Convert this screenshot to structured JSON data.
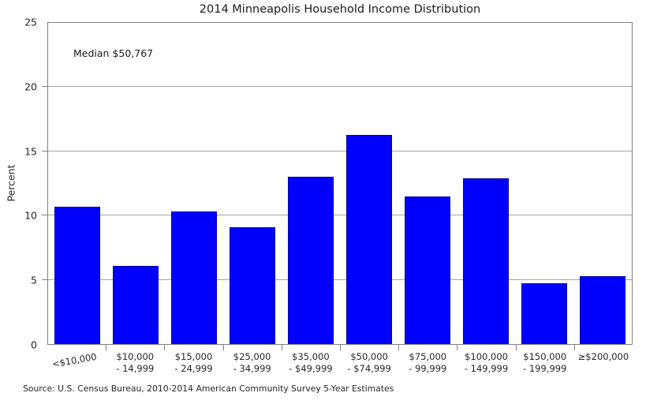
{
  "title": "2014 Minneapolis Household Income Distribution",
  "annotation": "Median $50,767",
  "ylabel": "Percent",
  "source": "Source: U.S. Census Bureau, 2010-2014 American Community Survey 5-Year Estimates",
  "colors": {
    "bar_fill": "#0000fe",
    "bar_edge": "#0000a8",
    "gridline": "#a3a3a3",
    "spine": "#808080",
    "text": "#262626"
  },
  "x_labels": [
    {
      "lines": [
        "<$10,000"
      ],
      "rotated": true
    },
    {
      "lines": [
        "$10,000",
        "- 14,999"
      ],
      "rotated": false
    },
    {
      "lines": [
        "$15,000",
        "- 24,999"
      ],
      "rotated": false
    },
    {
      "lines": [
        "$25,000",
        "- 34,999"
      ],
      "rotated": false
    },
    {
      "lines": [
        "$35,000",
        "- $49,999"
      ],
      "rotated": false
    },
    {
      "lines": [
        "$50,000",
        "- $74,999"
      ],
      "rotated": false
    },
    {
      "lines": [
        "$75,000",
        "- 99,999"
      ],
      "rotated": false
    },
    {
      "lines": [
        "$100,000",
        "- 149,999"
      ],
      "rotated": false
    },
    {
      "lines": [
        "$150,000",
        "- 199,999"
      ],
      "rotated": false
    },
    {
      "lines": [
        "≥$200,000"
      ],
      "rotated": false
    }
  ],
  "chart_data": {
    "type": "bar",
    "title": "2014 Minneapolis Household Income Distribution",
    "xlabel": "",
    "ylabel": "Percent",
    "ylim": [
      0,
      25
    ],
    "yticks": [
      0,
      5,
      10,
      15,
      20,
      25
    ],
    "grid": "horizontal",
    "legend": "none",
    "bar_color": "#0000fe",
    "annotation": "Median $50,767",
    "categories": [
      "<$10,000",
      "$10,000 - 14,999",
      "$15,000 - 24,999",
      "$25,000 - 34,999",
      "$35,000 - $49,999",
      "$50,000 - $74,999",
      "$75,000 - 99,999",
      "$100,000 - 149,999",
      "$150,000 - 199,999",
      "≥$200,000"
    ],
    "values": [
      10.7,
      6.1,
      10.3,
      9.1,
      13.0,
      16.3,
      11.5,
      12.9,
      4.7,
      5.3
    ]
  }
}
